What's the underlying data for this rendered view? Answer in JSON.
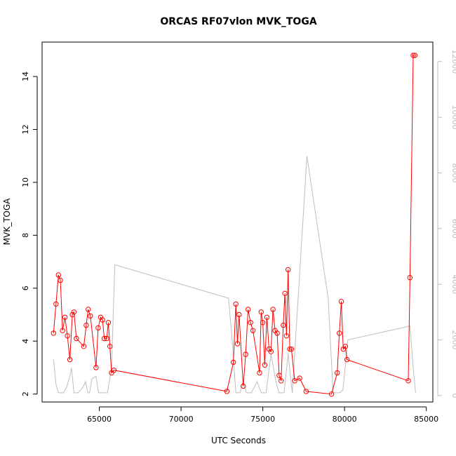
{
  "chart_data": {
    "type": "line",
    "title": "ORCAS RF07vlon MVK_TOGA",
    "xlabel": "UTC Seconds",
    "ylabel": "MVK_TOGA",
    "xlim": [
      61500,
      85400
    ],
    "ylim": [
      1.7,
      15.3
    ],
    "y2lim": [
      -230,
      12700
    ],
    "x_ticks": [
      {
        "value": 65000,
        "label": "65000"
      },
      {
        "value": 70000,
        "label": "70000"
      },
      {
        "value": 75000,
        "label": "75000"
      },
      {
        "value": 80000,
        "label": "80000"
      },
      {
        "value": 85000,
        "label": "85000"
      }
    ],
    "y_ticks": [
      {
        "value": 2,
        "label": "2"
      },
      {
        "value": 4,
        "label": "4"
      },
      {
        "value": 6,
        "label": "6"
      },
      {
        "value": 8,
        "label": "8"
      },
      {
        "value": 10,
        "label": "10"
      },
      {
        "value": 12,
        "label": "12"
      },
      {
        "value": 14,
        "label": "14"
      }
    ],
    "y2_ticks": [
      {
        "value": 0,
        "label": "0"
      },
      {
        "value": 2000,
        "label": "2000"
      },
      {
        "value": 4000,
        "label": "4000"
      },
      {
        "value": 6000,
        "label": "6000"
      },
      {
        "value": 8000,
        "label": "8000"
      },
      {
        "value": 10000,
        "label": "10000"
      },
      {
        "value": 12000,
        "label": "12000"
      }
    ],
    "series": [
      {
        "color": "#ff0000",
        "axis": "left",
        "markers": "open-circle",
        "x": [
          62200,
          62350,
          62500,
          62620,
          62750,
          62900,
          63050,
          63200,
          63350,
          63450,
          63600,
          64050,
          64200,
          64320,
          64450,
          64800,
          64930,
          65080,
          65200,
          65300,
          65450,
          65550,
          65650,
          65750,
          65900,
          72800,
          73200,
          73350,
          73450,
          73550,
          73800,
          73950,
          74100,
          74250,
          74400,
          74800,
          74900,
          75000,
          75120,
          75250,
          75380,
          75500,
          75620,
          75750,
          75880,
          76000,
          76120,
          76250,
          76350,
          76450,
          76550,
          76650,
          76750,
          76950,
          77250,
          77650,
          79200,
          79550,
          79680,
          79800,
          79920,
          80050,
          80150,
          83900,
          84000,
          84200,
          84300
        ],
        "y": [
          4.3,
          5.4,
          6.5,
          6.3,
          4.4,
          4.9,
          4.2,
          3.3,
          5.0,
          5.1,
          4.1,
          3.8,
          4.6,
          5.2,
          4.95,
          3.0,
          4.5,
          4.9,
          4.8,
          4.1,
          4.1,
          4.7,
          3.8,
          2.8,
          2.9,
          2.1,
          3.2,
          5.4,
          3.9,
          5.0,
          2.3,
          3.5,
          5.2,
          4.7,
          4.4,
          2.8,
          5.1,
          4.7,
          3.1,
          4.9,
          3.7,
          3.6,
          5.2,
          4.4,
          4.3,
          2.7,
          2.5,
          4.6,
          5.8,
          4.2,
          6.7,
          3.7,
          3.7,
          2.5,
          2.6,
          2.1,
          2.0,
          2.8,
          4.3,
          5.5,
          3.7,
          3.8,
          3.3,
          2.5,
          6.4,
          14.8,
          14.8
        ]
      },
      {
        "color": "#bebebe",
        "axis": "right",
        "markers": "none",
        "x": [
          62200,
          62350,
          62500,
          62800,
          63000,
          63200,
          63300,
          63450,
          63700,
          64000,
          64150,
          64300,
          64400,
          64550,
          64800,
          64950,
          65300,
          65500,
          65750,
          65950,
          72900,
          73100,
          73350,
          73600,
          73800,
          74000,
          74300,
          74650,
          74900,
          75050,
          75200,
          75500,
          75800,
          76000,
          76300,
          76550,
          76800,
          77700,
          79000,
          79300,
          79500,
          79700,
          79900,
          80200,
          84000,
          84200,
          84350
        ],
        "y": [
          1300,
          400,
          100,
          100,
          300,
          700,
          1000,
          100,
          100,
          300,
          500,
          100,
          100,
          600,
          700,
          100,
          100,
          100,
          1000,
          4700,
          3500,
          2200,
          100,
          100,
          500,
          100,
          100,
          500,
          100,
          100,
          100,
          1500,
          500,
          100,
          100,
          1500,
          100,
          8600,
          3500,
          100,
          100,
          100,
          200,
          2000,
          2500,
          1000,
          100
        ]
      }
    ]
  }
}
